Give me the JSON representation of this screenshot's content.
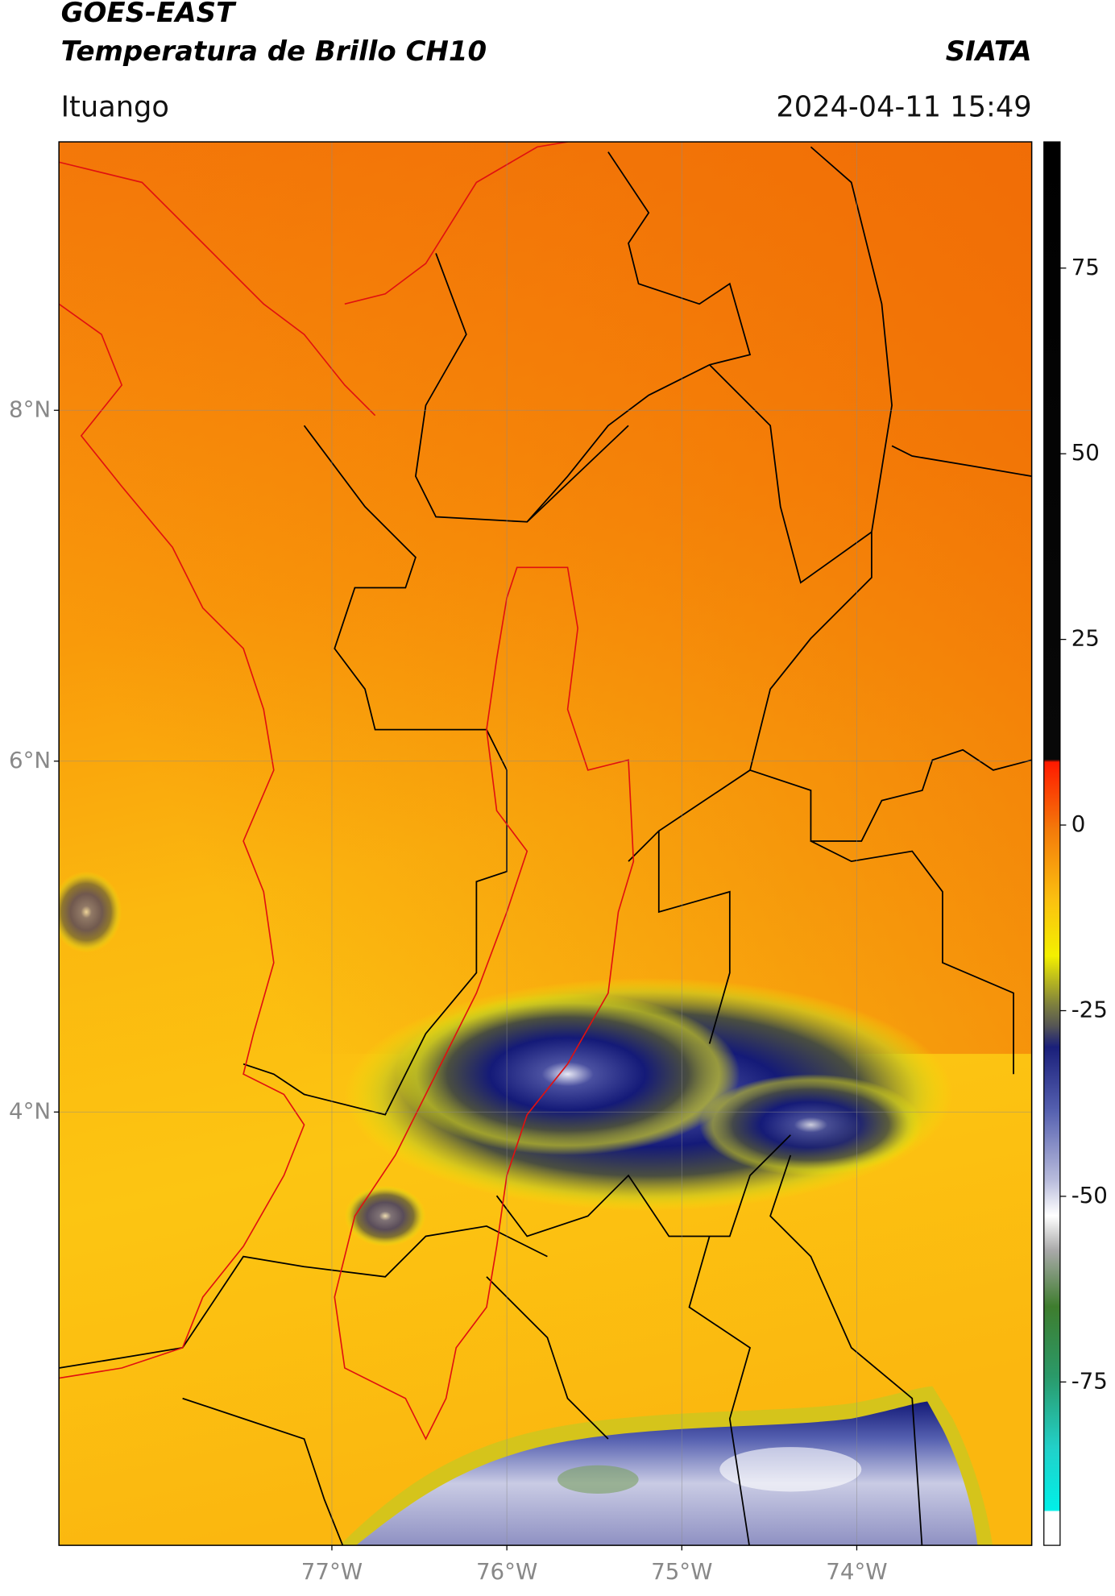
{
  "header": {
    "satellite": "GOES-EAST",
    "product": "Temperatura de Brillo CH10",
    "agency": "SIATA",
    "location": "Ituango",
    "timestamp": "2024-04-11 15:49"
  },
  "map": {
    "latlim": [
      1.53,
      9.53
    ],
    "lonlim": [
      -78.56,
      -73.0
    ],
    "latticks": [
      {
        "value": 8,
        "label": "8°N"
      },
      {
        "value": 6,
        "label": "6°N"
      },
      {
        "value": 4,
        "label": "4°N"
      }
    ],
    "lonticks": [
      {
        "value": -77,
        "label": "77°W"
      },
      {
        "value": -76,
        "label": "76°W"
      },
      {
        "value": -75,
        "label": "75°W"
      },
      {
        "value": -74,
        "label": "74°W"
      }
    ],
    "grid": true
  },
  "colorbar": {
    "lim": [
      -97,
      92
    ],
    "ticks": [
      75,
      50,
      25,
      0,
      -25,
      -50,
      -75
    ]
  }
}
